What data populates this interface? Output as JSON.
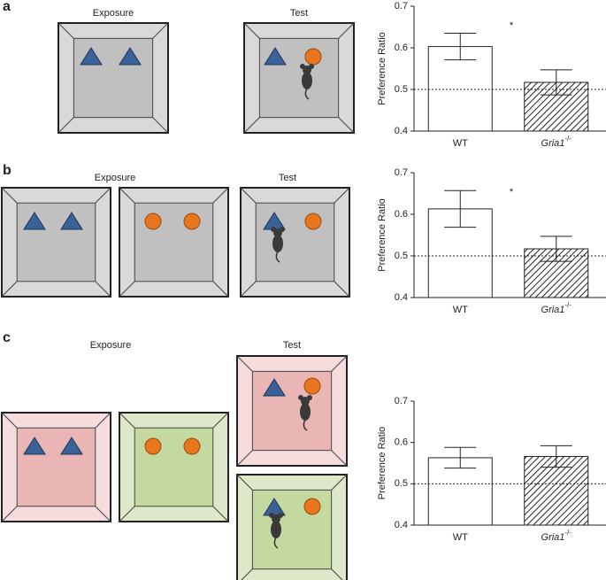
{
  "chart_data": [
    {
      "type": "bar",
      "ylabel": "Preference Ratio",
      "categories": [
        "WT",
        "Gria1"
      ],
      "category_superscripts": [
        null,
        "-/-"
      ],
      "values": [
        0.603,
        0.517
      ],
      "errors": [
        0.032,
        0.03
      ],
      "ylim": [
        0.4,
        0.7
      ],
      "yticks": [
        0.4,
        0.5,
        0.6,
        0.7
      ],
      "reference_line": 0.5,
      "annotation": "*"
    },
    {
      "type": "bar",
      "ylabel": "Preference Ratio",
      "categories": [
        "WT",
        "Gria1"
      ],
      "category_superscripts": [
        null,
        "-/-"
      ],
      "values": [
        0.613,
        0.517
      ],
      "errors": [
        0.044,
        0.03
      ],
      "ylim": [
        0.4,
        0.7
      ],
      "yticks": [
        0.4,
        0.5,
        0.6,
        0.7
      ],
      "reference_line": 0.5,
      "annotation": "*"
    },
    {
      "type": "bar",
      "ylabel": "Preference Ratio",
      "categories": [
        "WT",
        "Gria1"
      ],
      "category_superscripts": [
        null,
        "-/-"
      ],
      "values": [
        0.563,
        0.566
      ],
      "errors": [
        0.025,
        0.026
      ],
      "ylim": [
        0.4,
        0.7
      ],
      "yticks": [
        0.4,
        0.5,
        0.6,
        0.7
      ],
      "reference_line": 0.5
    }
  ],
  "panels": [
    {
      "letter": "a",
      "exposure_label": "Exposure",
      "test_label": "Test"
    },
    {
      "letter": "b",
      "exposure_label": "Exposure",
      "test_label": "Test"
    },
    {
      "letter": "c",
      "exposure_label": "Exposure",
      "test_label": "Test"
    }
  ]
}
